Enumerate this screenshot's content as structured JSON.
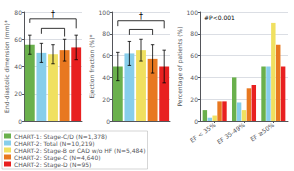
{
  "chart_data": [
    {
      "type": "bar",
      "ylabel": "End-diastolic dimension (mm)*",
      "categories": [
        null,
        null,
        null,
        null,
        null
      ],
      "values": [
        56,
        50,
        49,
        52,
        54
      ],
      "errors": [
        7,
        7,
        7,
        8,
        9
      ],
      "colors": [
        "#6ab04c",
        "#87ceeb",
        "#f0e060",
        "#e87820",
        "#e82020"
      ],
      "ylim": [
        0,
        80
      ],
      "yticks": [
        0,
        20,
        40,
        60,
        80
      ],
      "grid": true,
      "brackets": [
        {
          "bars": [
            0,
            4
          ],
          "y": 75,
          "ends": [
            72,
            68
          ],
          "label": "†"
        },
        {
          "bars": [
            1,
            3
          ],
          "y": 68,
          "ends": [
            64,
            62
          ]
        }
      ]
    },
    {
      "type": "bar",
      "ylabel": "Ejection fraction (%)*",
      "categories": [
        null,
        null,
        null,
        null,
        null
      ],
      "values": [
        50,
        62,
        65,
        57,
        50
      ],
      "errors": [
        13,
        11,
        10,
        13,
        15
      ],
      "colors": [
        "#6ab04c",
        "#87ceeb",
        "#f0e060",
        "#e87820",
        "#e82020"
      ],
      "ylim": [
        0,
        100
      ],
      "yticks": [
        0,
        20,
        40,
        60,
        80,
        100
      ],
      "grid": true,
      "brackets": [
        {
          "bars": [
            0,
            4
          ],
          "y": 92,
          "ends": [
            87,
            85
          ],
          "label": "†"
        },
        {
          "bars": [
            1,
            3
          ],
          "y": 84,
          "ends": [
            79,
            79
          ]
        }
      ]
    },
    {
      "type": "bar",
      "ylabel": "Percentage of patients (%)",
      "categories": [
        "EF < 35%",
        "EF 35-49%",
        "EF ≥50%"
      ],
      "series": [
        {
          "name": "CHART-1: Stage-C/D (N=1,378)",
          "color": "#6ab04c",
          "values": [
            10,
            40,
            50
          ]
        },
        {
          "name": "CHART-2: Total (N=10,219)",
          "color": "#87ceeb",
          "values": [
            3,
            17,
            50
          ]
        },
        {
          "name": "CHART-2: Stage-B or CAD w/o HF (N=5,484)",
          "color": "#f0e060",
          "values": [
            5,
            10,
            90
          ]
        },
        {
          "name": "CHART-2: Stage-C (N=4,640)",
          "color": "#e87820",
          "values": [
            18,
            30,
            70
          ]
        },
        {
          "name": "CHART-2: Stage-D (N=95)",
          "color": "#e82020",
          "values": [
            18,
            33,
            50
          ]
        }
      ],
      "ylim": [
        0,
        100
      ],
      "yticks": [
        0,
        20,
        40,
        60,
        80,
        100
      ],
      "grid": true,
      "annotation": "#P<0.001",
      "legend": "lower left"
    }
  ]
}
